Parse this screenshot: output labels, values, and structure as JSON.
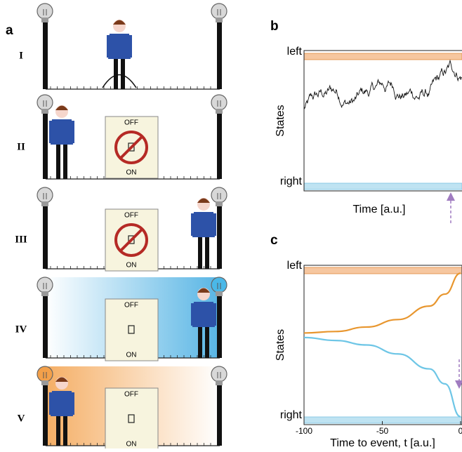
{
  "panel_labels": [
    "a",
    "b",
    "c"
  ],
  "panel_a": {
    "rows": [
      {
        "label": "I"
      },
      {
        "label": "II",
        "switch": {
          "top": "OFF",
          "bottom": "ON"
        }
      },
      {
        "label": "III",
        "switch": {
          "top": "OFF",
          "bottom": "ON"
        }
      },
      {
        "label": "IV",
        "switch": {
          "top": "OFF",
          "bottom": "ON"
        }
      },
      {
        "label": "V",
        "switch": {
          "top": "OFF",
          "bottom": "ON"
        }
      }
    ]
  },
  "chart_data": [
    {
      "type": "trace",
      "x_axis_title": "Time [a.u.]",
      "y_axis_title": "States",
      "ylim": [
        0,
        1
      ],
      "yticks": [
        {
          "value": 1,
          "label": "left"
        },
        {
          "value": 0,
          "label": "right"
        }
      ]
    },
    {
      "type": "line",
      "x_axis_title": "Time to event, t [a.u.]",
      "y_axis_title": "States",
      "xlim": [
        -100,
        0
      ],
      "xticks": [
        -100,
        -50,
        0
      ],
      "ylim": [
        0,
        1
      ],
      "yticks": [
        {
          "value": 1,
          "label": "left"
        },
        {
          "value": 0,
          "label": "right"
        }
      ],
      "x": [
        -100,
        -80,
        -60,
        -40,
        -20,
        -10,
        0
      ],
      "series": [
        {
          "color": "#e8962e",
          "values": [
            0.58,
            0.59,
            0.62,
            0.67,
            0.76,
            0.84,
            0.98
          ]
        },
        {
          "color": "#6ec6e6",
          "values": [
            0.55,
            0.53,
            0.5,
            0.44,
            0.34,
            0.24,
            0.02
          ]
        }
      ]
    }
  ]
}
